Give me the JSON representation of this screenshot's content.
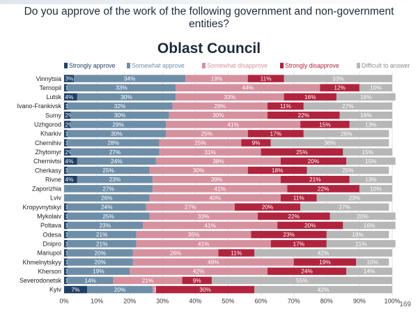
{
  "page": {
    "title": "Do you approve of the work of the following government and non-government entities?",
    "subtitle": "Oblast Council",
    "page_number": "169"
  },
  "chart_data": {
    "type": "bar",
    "orientation": "horizontal",
    "stacked": true,
    "legend_position": "top",
    "grid": true,
    "xlim": [
      0,
      100
    ],
    "x_ticks": [
      "0%",
      "10%",
      "20%",
      "30%",
      "40%",
      "50%",
      "60%",
      "70%",
      "80%",
      "90%",
      "100%"
    ],
    "categories": [
      "Vinnytsia",
      "Ternopil",
      "Lutsk",
      "Ivano-Frankivsk",
      "Sumy",
      "Uzhgorod",
      "Kharkiv",
      "Chernihiv",
      "Zhytomyr",
      "Chernivtsi",
      "Cherkasy",
      "Rivne",
      "Zaporizhia",
      "Lviv",
      "Kropyvnytskyi",
      "Mykolaiv",
      "Poltava",
      "Odesa",
      "Dnipro",
      "Mariupol",
      "Khmelnytskyy",
      "Kherson",
      "Severodonetsk",
      "Kyiv"
    ],
    "series": [
      {
        "name": "Strongly approve",
        "color": "#1f3f66",
        "values": [
          3,
          1,
          4,
          1,
          2,
          2,
          1,
          1,
          2,
          4,
          1,
          4,
          0,
          0,
          1,
          1,
          1,
          1,
          1,
          1,
          1,
          1,
          1,
          7
        ]
      },
      {
        "name": "Somewhat approve",
        "color": "#6e8ea8",
        "values": [
          34,
          33,
          30,
          32,
          30,
          29,
          30,
          28,
          27,
          24,
          25,
          23,
          27,
          26,
          24,
          25,
          23,
          21,
          21,
          20,
          20,
          19,
          14,
          20
        ]
      },
      {
        "name": "Somewhat disapprove",
        "color": "#d6919e",
        "values": [
          19,
          44,
          33,
          29,
          30,
          41,
          25,
          25,
          31,
          38,
          30,
          39,
          41,
          40,
          27,
          33,
          41,
          35,
          41,
          26,
          49,
          42,
          21,
          1
        ]
      },
      {
        "name": "Strongly disapprove",
        "color": "#b0243e",
        "values": [
          11,
          12,
          16,
          11,
          22,
          15,
          17,
          9,
          25,
          20,
          18,
          21,
          22,
          11,
          20,
          22,
          20,
          23,
          17,
          11,
          19,
          24,
          9,
          30
        ]
      },
      {
        "name": "Difficult to answer",
        "color": "#b7b7b7",
        "values": [
          33,
          10,
          18,
          27,
          16,
          13,
          26,
          36,
          15,
          15,
          25,
          13,
          10,
          23,
          27,
          20,
          16,
          19,
          21,
          42,
          10,
          14,
          55,
          42
        ]
      }
    ]
  }
}
